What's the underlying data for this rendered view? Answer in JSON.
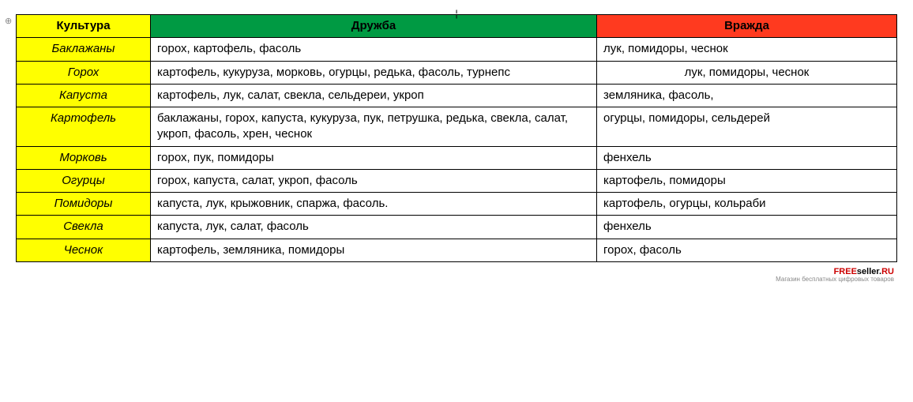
{
  "table": {
    "headers": {
      "culture": "Культура",
      "friendship": "Дружба",
      "enmity": "Вражда"
    },
    "header_colors": {
      "culture_bg": "#ffff00",
      "friendship_bg": "#009a43",
      "enmity_bg": "#ff3a1f",
      "culture_cell_bg": "#ffff00",
      "body_bg": "#ffffff",
      "border": "#000000"
    },
    "column_widths": {
      "culture": 170,
      "enmity": 380
    },
    "font": {
      "family": "Arial",
      "size_pt": 12,
      "culture_style": "italic",
      "header_weight": "bold"
    },
    "rows": [
      {
        "culture": "Баклажаны",
        "friendship": "горох, картофель, фасоль",
        "enmity": "лук, помидоры, чеснок"
      },
      {
        "culture": "Горох",
        "friendship": "картофель, кукуруза, морковь, огурцы, редька, фасоль, турнепс",
        "enmity": "лук, помидоры, чеснок"
      },
      {
        "culture": "Капуста",
        "friendship": "картофель, лук, салат, свекла, сельдереи, укроп",
        "enmity": "земляника, фасоль,"
      },
      {
        "culture": "Картофель",
        "friendship": "баклажаны, горох, капуста, кукуруза, пук, петрушка, редька, свекла, салат, укроп, фасоль, хрен, чеснок",
        "enmity": "огурцы, помидоры, сельдерей"
      },
      {
        "culture": "Морковь",
        "friendship": "горох, пук, помидоры",
        "enmity": "фенхель"
      },
      {
        "culture": "Огурцы",
        "friendship": "горох, капуста, салат, укроп, фасоль",
        "enmity": "картофель, помидоры"
      },
      {
        "culture": "Помидоры",
        "friendship": "капуста, лук, крыжовник, спаржа, фасоль.",
        "enmity": "картофель, огурцы, кольраби"
      },
      {
        "culture": "Свекла",
        "friendship": "капуста, лук, салат, фасоль",
        "enmity": "фенхель"
      },
      {
        "culture": "Чеснок",
        "friendship": "картофель, земляника, помидоры",
        "enmity": "горох, фасоль"
      }
    ]
  },
  "branding": {
    "part_red": "FREE",
    "part_black": "seller.",
    "part_tld": "RU",
    "subtitle": "Магазин бесплатных цифровых товаров"
  },
  "marks": {
    "top_tick": "¦",
    "anchor": "⊕"
  }
}
